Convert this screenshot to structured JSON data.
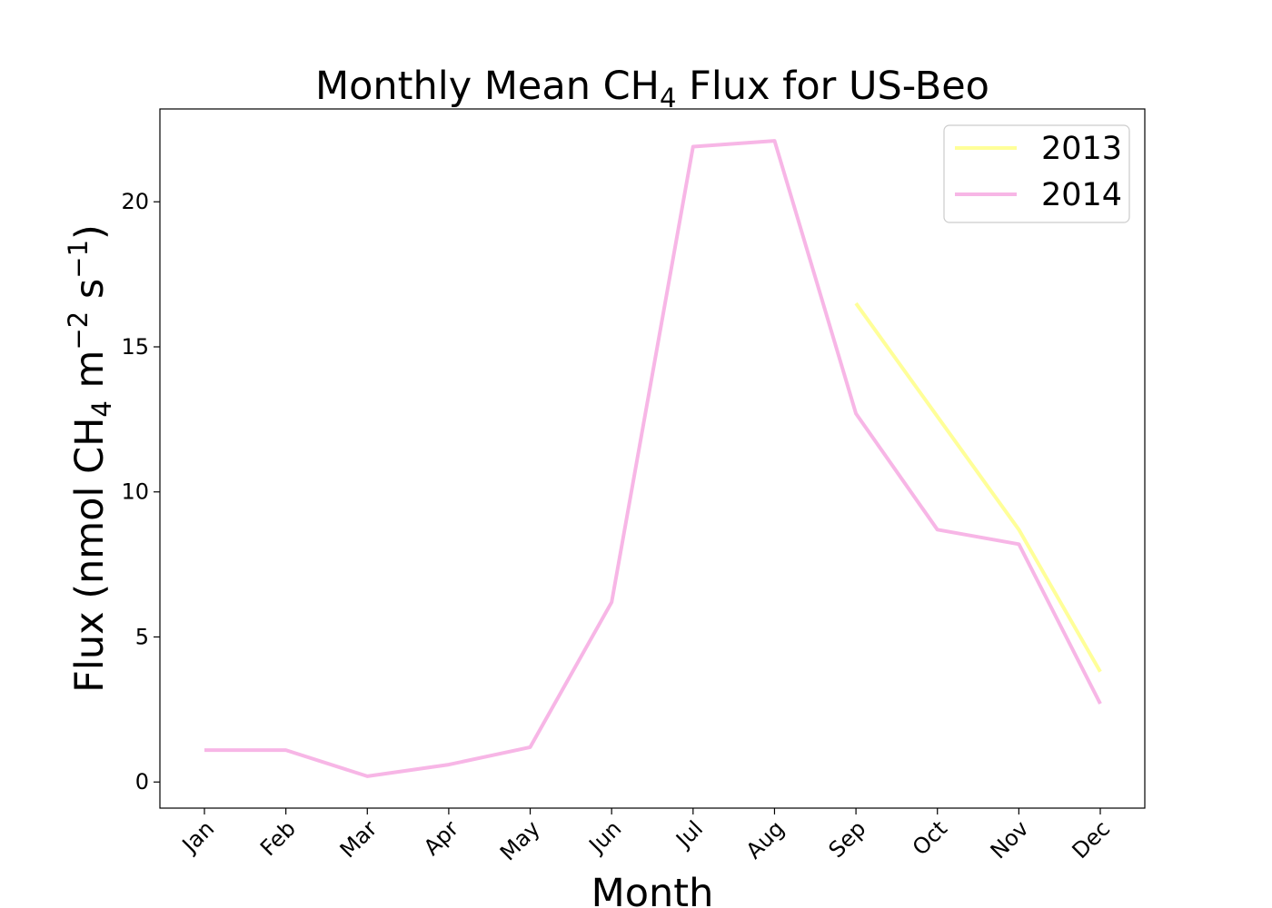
{
  "chart_data": {
    "type": "line",
    "title": {
      "main": "Monthly Mean CH",
      "sub": "4",
      "rest": " Flux for US-Beo"
    },
    "xlabel": "Month",
    "ylabel": {
      "p1": "Flux (nmol CH",
      "sub": "4",
      "p2": " m",
      "sup1": "−2",
      "p3": " s",
      "sup2": "−1",
      "p4": ")"
    },
    "categories": [
      "Jan",
      "Feb",
      "Mar",
      "Apr",
      "May",
      "Jun",
      "Jul",
      "Aug",
      "Sep",
      "Oct",
      "Nov",
      "Dec"
    ],
    "yticks": [
      0,
      5,
      10,
      15,
      20
    ],
    "ylim": [
      -0.9,
      23.2
    ],
    "grid": false,
    "legend_position": "top-right",
    "series": [
      {
        "name": "2013",
        "color": "#ffff99",
        "values": [
          null,
          null,
          null,
          null,
          null,
          null,
          null,
          null,
          16.5,
          12.6,
          8.7,
          3.8
        ]
      },
      {
        "name": "2014",
        "color": "#f7b6e6",
        "values": [
          1.1,
          1.1,
          0.2,
          0.6,
          1.2,
          6.2,
          21.9,
          22.1,
          12.7,
          8.7,
          8.2,
          2.7
        ]
      }
    ]
  }
}
